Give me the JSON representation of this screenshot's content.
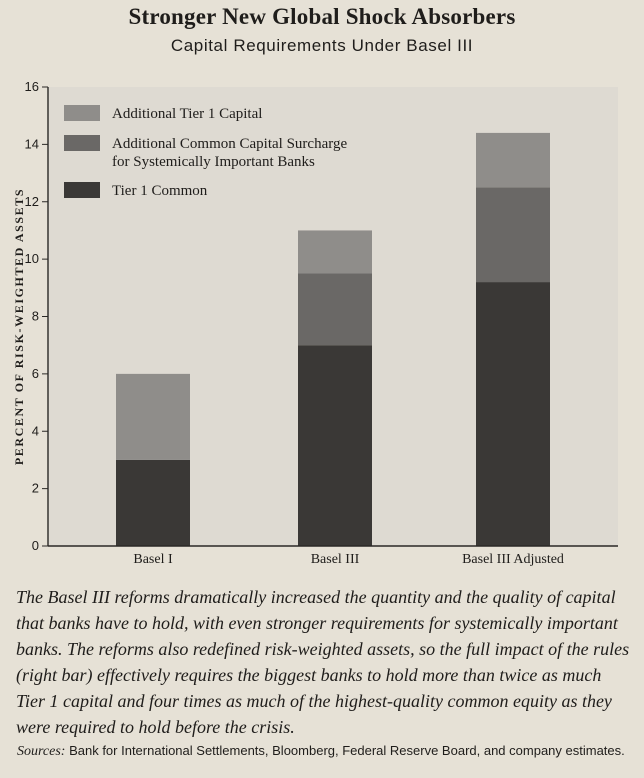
{
  "title": "Stronger New Global Shock Absorbers",
  "subtitle": "Capital Requirements Under Basel III",
  "caption": "The Basel III reforms dramatically increased the quantity and the quality of capital that banks have to hold, with even stronger requirements for systemically important banks. The reforms also redefined risk-weighted assets, so the full impact of the rules (right bar) effectively requires the biggest banks to hold more than twice as much Tier 1 capital and four times as much of the highest-quality common equity as they were required to hold before the crisis.",
  "sources_label": "Sources:",
  "sources_text": " Bank for International Settlements, Bloomberg, Federal Reserve Board, and company estimates.",
  "colors": {
    "tier1_common": "#3a3836",
    "sifi_surcharge": "#6a6866",
    "additional_tier1": "#8f8d8a",
    "plot_background": "#dedad2",
    "axis": "#2a2826"
  },
  "chart_data": {
    "type": "bar",
    "stacked": true,
    "title": "Stronger New Global Shock Absorbers",
    "subtitle": "Capital Requirements Under Basel III",
    "xlabel": "",
    "ylabel": "PERCENT OF RISK-WEIGHTED ASSETS",
    "ylim": [
      0,
      16
    ],
    "yticks": [
      0,
      2,
      4,
      6,
      8,
      10,
      12,
      14,
      16
    ],
    "grid": false,
    "legend_position": "top-left",
    "categories": [
      "Basel I",
      "Basel III",
      "Basel III Adjusted"
    ],
    "series": [
      {
        "name": "Tier 1 Common",
        "color": "#3a3836",
        "values": [
          3.0,
          7.0,
          9.2
        ]
      },
      {
        "name": "Additional Common Capital Surcharge for Systemically Important Banks",
        "color": "#6a6866",
        "values": [
          0.0,
          2.5,
          3.3
        ]
      },
      {
        "name": "Additional Tier 1 Capital",
        "color": "#8f8d8a",
        "values": [
          3.0,
          1.5,
          1.9
        ]
      }
    ],
    "legend_order": [
      {
        "name": "Additional Tier 1 Capital",
        "lines": [
          "Additional Tier 1 Capital"
        ]
      },
      {
        "name": "Additional Common Capital Surcharge for Systemically Important Banks",
        "lines": [
          "Additional Common Capital Surcharge",
          "for Systemically Important Banks"
        ]
      },
      {
        "name": "Tier 1 Common",
        "lines": [
          "Tier 1 Common"
        ]
      }
    ]
  }
}
